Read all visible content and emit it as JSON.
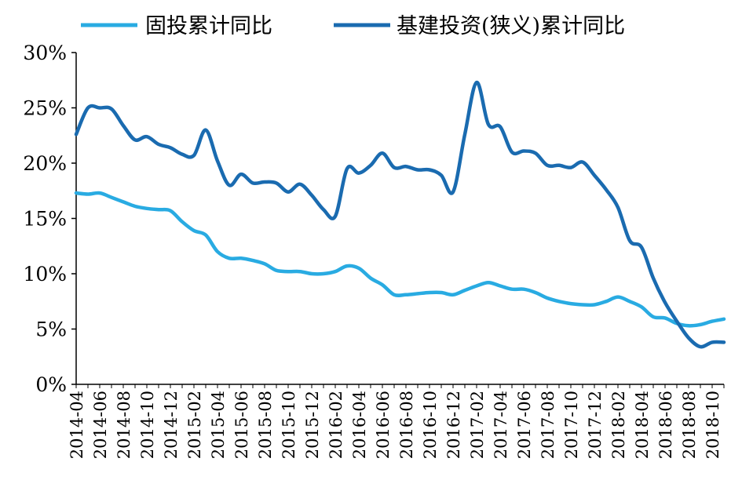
{
  "chart_data": {
    "type": "line",
    "title": "",
    "xlabel": "",
    "ylabel": "",
    "ylim": [
      0,
      30
    ],
    "yticks": [
      "0%",
      "5%",
      "10%",
      "15%",
      "20%",
      "25%",
      "30%"
    ],
    "grid": false,
    "legend_position": "top",
    "x": [
      "2014-04",
      "2014-05",
      "2014-06",
      "2014-07",
      "2014-08",
      "2014-09",
      "2014-10",
      "2014-11",
      "2014-12",
      "2015-01",
      "2015-02",
      "2015-03",
      "2015-04",
      "2015-05",
      "2015-06",
      "2015-07",
      "2015-08",
      "2015-09",
      "2015-10",
      "2015-11",
      "2015-12",
      "2016-01",
      "2016-02",
      "2016-03",
      "2016-04",
      "2016-05",
      "2016-06",
      "2016-07",
      "2016-08",
      "2016-09",
      "2016-10",
      "2016-11",
      "2016-12",
      "2017-01",
      "2017-02",
      "2017-03",
      "2017-04",
      "2017-05",
      "2017-06",
      "2017-07",
      "2017-08",
      "2017-09",
      "2017-10",
      "2017-11",
      "2017-12",
      "2018-01",
      "2018-02",
      "2018-03",
      "2018-04",
      "2018-05",
      "2018-06",
      "2018-07",
      "2018-08",
      "2018-09",
      "2018-10",
      "2018-11"
    ],
    "xtick_labels": [
      "2014-04",
      "2014-06",
      "2014-08",
      "2014-10",
      "2014-12",
      "2015-02",
      "2015-04",
      "2015-06",
      "2015-08",
      "2015-10",
      "2015-12",
      "2016-02",
      "2016-04",
      "2016-06",
      "2016-08",
      "2016-10",
      "2016-12",
      "2017-02",
      "2017-04",
      "2017-06",
      "2017-08",
      "2017-10",
      "2017-12",
      "2018-02",
      "2018-04",
      "2018-06",
      "2018-08",
      "2018-10"
    ],
    "series": [
      {
        "name": "固投累计同比",
        "color": "#29abe2",
        "values": [
          17.3,
          17.2,
          17.3,
          16.9,
          16.5,
          16.1,
          15.9,
          15.8,
          15.7,
          14.7,
          13.9,
          13.5,
          12.0,
          11.4,
          11.4,
          11.2,
          10.9,
          10.3,
          10.2,
          10.2,
          10.0,
          10.0,
          10.2,
          10.7,
          10.5,
          9.6,
          9.0,
          8.1,
          8.1,
          8.2,
          8.3,
          8.3,
          8.1,
          8.5,
          8.9,
          9.2,
          8.9,
          8.6,
          8.6,
          8.3,
          7.8,
          7.5,
          7.3,
          7.2,
          7.2,
          7.5,
          7.9,
          7.5,
          7.0,
          6.1,
          6.0,
          5.5,
          5.3,
          5.4,
          5.7,
          5.9
        ]
      },
      {
        "name": "基建投资(狭义)累计同比",
        "color": "#1a6bb0",
        "values": [
          22.6,
          25.0,
          25.0,
          24.9,
          23.4,
          22.1,
          22.4,
          21.7,
          21.4,
          20.8,
          20.7,
          23.0,
          20.2,
          18.0,
          19.0,
          18.2,
          18.3,
          18.2,
          17.4,
          18.1,
          17.1,
          15.8,
          15.2,
          19.5,
          19.1,
          19.8,
          20.9,
          19.6,
          19.7,
          19.4,
          19.4,
          18.9,
          17.4,
          22.6,
          27.3,
          23.5,
          23.3,
          21.0,
          21.1,
          20.9,
          19.8,
          19.8,
          19.6,
          20.1,
          18.9,
          17.6,
          16.0,
          13.0,
          12.4,
          9.6,
          7.4,
          5.7,
          4.2,
          3.4,
          3.8,
          3.8
        ]
      }
    ]
  }
}
